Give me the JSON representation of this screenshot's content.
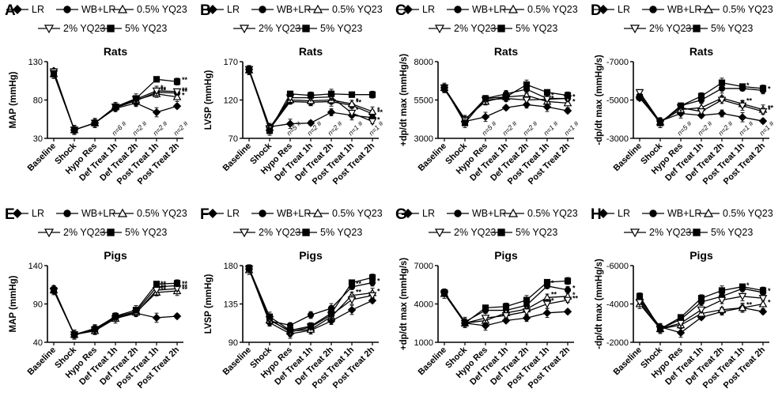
{
  "chart_data": [
    {
      "panel": "A",
      "type": "line",
      "title": "Rats",
      "ylabel": "MAP (mmHg)",
      "ylim": [
        30,
        130
      ],
      "yticks": [
        30,
        80,
        130
      ],
      "reversed": false,
      "categories": [
        "Baseline",
        "Shock",
        "Hypo Res",
        "Def Treat 1h",
        "Def Treat 2h",
        "Post Treat 1h",
        "Post Treat 2h"
      ],
      "n_labels": [
        "",
        "",
        "",
        "n=6 #",
        "n=2 #",
        "n=2 #",
        "n=2 #"
      ],
      "series": [
        {
          "name": "LR",
          "values": [
            118,
            41,
            50,
            69,
            76,
            64,
            72
          ]
        },
        {
          "name": "WB+LR",
          "values": [
            116,
            41,
            50,
            70,
            79,
            90,
            89
          ]
        },
        {
          "name": "0.5% YQ23",
          "values": [
            114,
            41,
            50,
            71,
            80,
            88,
            84
          ]
        },
        {
          "name": "2% YQ23",
          "values": [
            117,
            41,
            50,
            71,
            81,
            92,
            91
          ]
        },
        {
          "name": "5% YQ23",
          "values": [
            114,
            41,
            50,
            71,
            82,
            107,
            104
          ]
        }
      ],
      "annotations": [
        "**",
        "**",
        "*",
        "**",
        "**",
        "*",
        "**"
      ]
    },
    {
      "panel": "B",
      "type": "line",
      "title": "Rats",
      "ylabel": "LVSP (mmHg)",
      "ylim": [
        70,
        170
      ],
      "yticks": [
        70,
        120,
        170
      ],
      "reversed": false,
      "categories": [
        "Baseline",
        "Shock",
        "Hypo Res",
        "Def Treat 1h",
        "Def Treat 2h",
        "Post Treat 1h",
        "Post Treat 2h"
      ],
      "n_labels": [
        "",
        "",
        "n=5 #",
        "n=2 #",
        "n=2 #",
        "n=1 #",
        "n=1 #"
      ],
      "series": [
        {
          "name": "LR",
          "values": [
            160,
            85,
            89,
            90,
            104,
            100,
            97
          ]
        },
        {
          "name": "WB+LR",
          "values": [
            158,
            82,
            118,
            117,
            118,
            113,
            102
          ]
        },
        {
          "name": "0.5% YQ23",
          "values": [
            159,
            84,
            120,
            119,
            120,
            115,
            105
          ]
        },
        {
          "name": "2% YQ23",
          "values": [
            160,
            83,
            123,
            123,
            124,
            103,
            92
          ]
        },
        {
          "name": "5% YQ23",
          "values": [
            160,
            80,
            128,
            126,
            128,
            127,
            127
          ]
        }
      ],
      "annotations": [
        "**",
        "**",
        "*",
        "*",
        "*",
        "*"
      ]
    },
    {
      "panel": "C",
      "type": "line",
      "title": "Rats",
      "ylabel": "+dp/dt max (mmHg/s)",
      "ylim": [
        3000,
        8000
      ],
      "yticks": [
        3000,
        5500,
        8000
      ],
      "reversed": false,
      "categories": [
        "Baseline",
        "Shock",
        "Hypo Res",
        "Def Treat 1h",
        "Def Treat 2h",
        "Post Treat 1h",
        "Post Treat 2h"
      ],
      "n_labels": [
        "",
        "",
        "n=5 #",
        "n=2 #",
        "n=2 #",
        "n=1 #",
        "n=1 #"
      ],
      "series": [
        {
          "name": "LR",
          "values": [
            6300,
            4100,
            4400,
            5000,
            5200,
            5050,
            4800
          ]
        },
        {
          "name": "WB+LR",
          "values": [
            6200,
            4200,
            5600,
            5900,
            6200,
            5600,
            5600
          ]
        },
        {
          "name": "0.5% YQ23",
          "values": [
            6300,
            4250,
            5400,
            5700,
            5800,
            5400,
            5300
          ]
        },
        {
          "name": "2% YQ23",
          "values": [
            6300,
            4200,
            5500,
            5600,
            5500,
            5550,
            5600
          ]
        },
        {
          "name": "5% YQ23",
          "values": [
            6300,
            4000,
            5600,
            5700,
            6500,
            6000,
            5800
          ]
        }
      ],
      "annotations": [
        "*",
        "*",
        "*",
        "*"
      ]
    },
    {
      "panel": "D",
      "type": "line",
      "title": "Rats",
      "ylabel": "-dp/dt max (mmHg/s)",
      "ylim": [
        -3000,
        -7000
      ],
      "yticks": [
        -3000,
        -5000,
        -7000
      ],
      "reversed": true,
      "categories": [
        "Baseline",
        "Shock",
        "Hypo Res",
        "Def Treat 1h",
        "Def Treat 2h",
        "Post Treat 1h",
        "Post Treat 2h"
      ],
      "n_labels": [
        "",
        "",
        "n=5 #",
        "n=2 #",
        "n=2 #",
        "n=1 #",
        "n=1 #"
      ],
      "series": [
        {
          "name": "LR",
          "values": [
            -5100,
            -3900,
            -4300,
            -4200,
            -4300,
            -4100,
            -3900
          ]
        },
        {
          "name": "WB+LR",
          "values": [
            -5200,
            -3800,
            -4700,
            -5000,
            -5600,
            -5600,
            -5500
          ]
        },
        {
          "name": "0.5% YQ23",
          "values": [
            -5300,
            -3850,
            -4500,
            -4600,
            -5100,
            -4800,
            -4500
          ]
        },
        {
          "name": "2% YQ23",
          "values": [
            -5400,
            -3850,
            -4600,
            -4400,
            -5000,
            -4700,
            -4400
          ]
        },
        {
          "name": "5% YQ23",
          "values": [
            -5150,
            -3800,
            -4700,
            -5200,
            -5900,
            -5700,
            -5600
          ]
        }
      ],
      "annotations": [
        "*",
        "*",
        "**",
        "**",
        "*"
      ]
    },
    {
      "panel": "E",
      "type": "line",
      "title": "Pigs",
      "ylabel": "MAP (mmHg)",
      "ylim": [
        40,
        140
      ],
      "yticks": [
        40,
        90,
        140
      ],
      "reversed": false,
      "categories": [
        "Baseline",
        "Shock",
        "Hypo Res",
        "Def Treat 1h",
        "Def Treat 2h",
        "Post Treat 1h",
        "Post Treat 2h"
      ],
      "n_labels": [
        "",
        "",
        "",
        "",
        "",
        "",
        ""
      ],
      "series": [
        {
          "name": "LR",
          "values": [
            110,
            50,
            57,
            72,
            78,
            72,
            74
          ]
        },
        {
          "name": "WB+LR",
          "values": [
            109,
            50,
            58,
            73,
            80,
            112,
            114
          ]
        },
        {
          "name": "0.5% YQ23",
          "values": [
            108,
            50,
            55,
            71,
            79,
            105,
            107
          ]
        },
        {
          "name": "2% YQ23",
          "values": [
            107,
            50,
            56,
            71,
            78,
            108,
            110
          ]
        },
        {
          "name": "5% YQ23",
          "values": [
            108,
            50,
            57,
            74,
            82,
            116,
            117
          ]
        }
      ],
      "annotations": [
        "**",
        "**",
        "**",
        "**",
        "**",
        "**"
      ]
    },
    {
      "panel": "F",
      "type": "line",
      "title": "Pigs",
      "ylabel": "LVSP (mmHg)",
      "ylim": [
        90,
        180
      ],
      "yticks": [
        90,
        135,
        180
      ],
      "reversed": false,
      "categories": [
        "Baseline",
        "Shock",
        "Hypo Res",
        "Def Treat 1h",
        "Def Treat 2h",
        "Post Treat 1h",
        "Post Treat 2h"
      ],
      "n_labels": [
        "",
        "",
        "",
        "",
        "",
        "",
        ""
      ],
      "series": [
        {
          "name": "LR",
          "values": [
            176,
            113,
            100,
            104,
            115,
            128,
            139
          ]
        },
        {
          "name": "WB+LR",
          "values": [
            176,
            115,
            110,
            122,
            130,
            155,
            160
          ]
        },
        {
          "name": "0.5% YQ23",
          "values": [
            175,
            116,
            103,
            105,
            120,
            145,
            148
          ]
        },
        {
          "name": "2% YQ23",
          "values": [
            176,
            117,
            102,
            108,
            122,
            140,
            145
          ]
        },
        {
          "name": "5% YQ23",
          "values": [
            177,
            120,
            104,
            109,
            124,
            160,
            166
          ]
        }
      ],
      "annotations": [
        "*",
        "**",
        "*",
        "**"
      ]
    },
    {
      "panel": "G",
      "type": "line",
      "title": "Pigs",
      "ylabel": "+dp/dt max (mmHg/s)",
      "ylim": [
        1000,
        7000
      ],
      "yticks": [
        1000,
        4000,
        7000
      ],
      "reversed": false,
      "categories": [
        "Baseline",
        "Shock",
        "Hypo Res",
        "Def Treat 1h",
        "Def Treat 2h",
        "Post Treat 1h",
        "Post Treat 2h"
      ],
      "n_labels": [
        "",
        "",
        "",
        "",
        "",
        "",
        ""
      ],
      "series": [
        {
          "name": "LR",
          "values": [
            4900,
            2500,
            2300,
            2700,
            2900,
            3300,
            3400
          ]
        },
        {
          "name": "WB+LR",
          "values": [
            4900,
            2600,
            3500,
            3500,
            3900,
            5400,
            5100
          ]
        },
        {
          "name": "0.5% YQ23",
          "values": [
            4800,
            2500,
            2700,
            3300,
            3600,
            4500,
            4600
          ]
        },
        {
          "name": "2% YQ23",
          "values": [
            4800,
            2500,
            2900,
            3100,
            3400,
            4000,
            4300
          ]
        },
        {
          "name": "5% YQ23",
          "values": [
            4900,
            2500,
            3700,
            3800,
            4300,
            5700,
            5800
          ]
        }
      ],
      "annotations": [
        "*",
        "*",
        "*",
        "**",
        "**",
        "*"
      ]
    },
    {
      "panel": "H",
      "type": "line",
      "title": "Pigs",
      "ylabel": "-dp/dt max (mmHg/s)",
      "ylim": [
        -2000,
        -6000
      ],
      "yticks": [
        -2000,
        -4000,
        -6000
      ],
      "reversed": true,
      "categories": [
        "Baseline",
        "Shock",
        "Hypo Res",
        "Def Treat 1h",
        "Def Treat 2h",
        "Post Treat 1h",
        "Post Treat 2h"
      ],
      "n_labels": [
        "",
        "",
        "",
        "",
        "",
        "",
        ""
      ],
      "series": [
        {
          "name": "LR",
          "values": [
            -4200,
            -2800,
            -2500,
            -3300,
            -3600,
            -3800,
            -3600
          ]
        },
        {
          "name": "WB+LR",
          "values": [
            -4300,
            -2700,
            -3200,
            -4100,
            -4400,
            -4800,
            -4600
          ]
        },
        {
          "name": "0.5% YQ23",
          "values": [
            -4000,
            -2700,
            -2900,
            -3500,
            -3700,
            -3800,
            -4000
          ]
        },
        {
          "name": "2% YQ23",
          "values": [
            -4100,
            -2700,
            -3000,
            -3700,
            -4200,
            -4400,
            -4300
          ]
        },
        {
          "name": "5% YQ23",
          "values": [
            -4400,
            -2700,
            -3300,
            -4300,
            -4700,
            -4900,
            -4700
          ]
        }
      ],
      "annotations": [
        "*",
        "*",
        "*",
        "**"
      ]
    }
  ],
  "legend_markers": {
    "LR": "diamond",
    "WB+LR": "circle",
    "0.5% YQ23": "triangle-up",
    "2% YQ23": "triangle-down",
    "5% YQ23": "square"
  },
  "line_color": "#000000"
}
